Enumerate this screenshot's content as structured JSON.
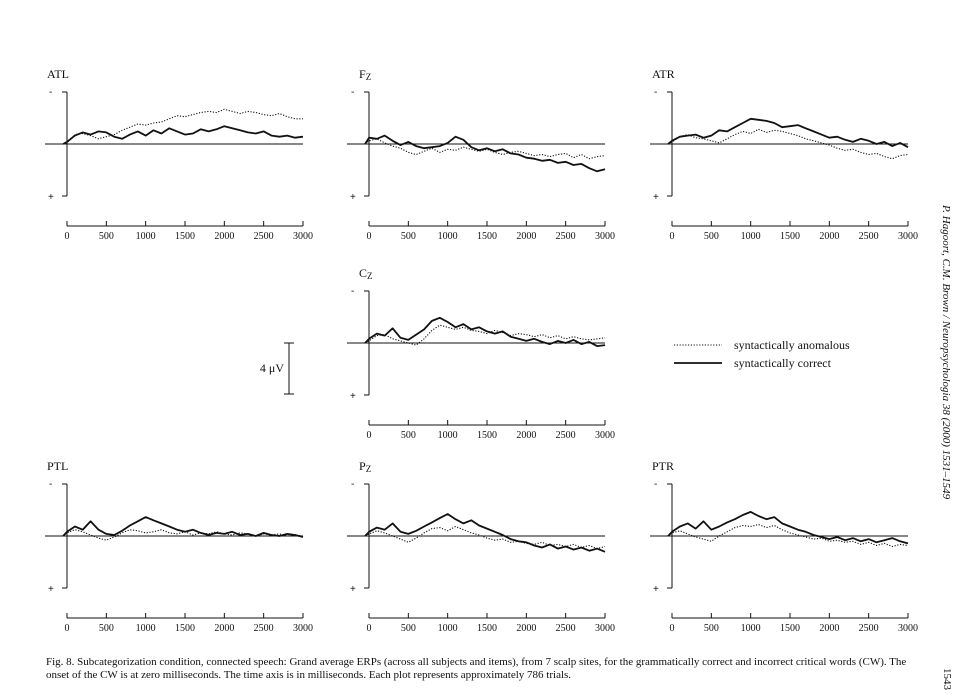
{
  "caption": "Fig. 8. Subcategorization condition, connected speech: Grand average ERPs (across all subjects and items), from 7 scalp sites, for the grammatically correct and incorrect critical words (CW). The onset of the CW is at zero milliseconds. The time axis is in milliseconds. Each plot represents approximately 786 trials.",
  "running_head": "P. Hagoort, C.M. Brown / Neuropsychologia 38 (2000) 1531–1549",
  "page_number": "1543",
  "scale_bar_label": "4 μV",
  "polarity": {
    "negative": "-",
    "positive": "+"
  },
  "legend": [
    {
      "name": "syntactically anomalous",
      "style": "dotted"
    },
    {
      "name": "syntactically correct",
      "style": "solid"
    }
  ],
  "chart_data": [
    {
      "type": "line",
      "title": "ATL",
      "xlim": [
        0,
        3000
      ],
      "ylim": [
        -4,
        4
      ],
      "x_ticks": [
        0,
        500,
        1000,
        1500,
        2000,
        2500,
        3000
      ],
      "x": [
        -50,
        0,
        100,
        200,
        300,
        400,
        500,
        600,
        700,
        800,
        900,
        1000,
        1100,
        1200,
        1300,
        1400,
        1500,
        1600,
        1700,
        1800,
        1900,
        2000,
        2100,
        2200,
        2300,
        2400,
        2500,
        2600,
        2700,
        2800,
        2900,
        3000
      ],
      "series": [
        {
          "name": "syntactically anomalous",
          "values": [
            0,
            0.1,
            0.9,
            1.0,
            0.8,
            0.5,
            0.7,
            0.9,
            1.3,
            1.6,
            1.9,
            1.8,
            2.0,
            2.1,
            2.4,
            2.7,
            2.6,
            2.8,
            3.0,
            3.1,
            3.0,
            3.3,
            3.1,
            2.9,
            3.1,
            3.0,
            2.8,
            2.7,
            2.9,
            2.6,
            2.4,
            2.4
          ]
        },
        {
          "name": "syntactically correct",
          "values": [
            0,
            0.2,
            0.8,
            1.1,
            0.9,
            1.2,
            1.1,
            0.7,
            0.5,
            0.9,
            1.2,
            0.8,
            1.3,
            1.0,
            1.5,
            1.2,
            0.9,
            1.0,
            1.4,
            1.2,
            1.4,
            1.7,
            1.5,
            1.3,
            1.1,
            1.0,
            1.2,
            0.8,
            0.7,
            0.8,
            0.6,
            0.7
          ]
        }
      ]
    },
    {
      "type": "line",
      "title": "Fz",
      "xlim": [
        0,
        3000
      ],
      "ylim": [
        -4,
        4
      ],
      "x_ticks": [
        0,
        500,
        1000,
        1500,
        2000,
        2500,
        3000
      ],
      "x": [
        -50,
        0,
        100,
        200,
        300,
        400,
        500,
        600,
        700,
        800,
        900,
        1000,
        1100,
        1200,
        1300,
        1400,
        1500,
        1600,
        1700,
        1800,
        1900,
        2000,
        2100,
        2200,
        2300,
        2400,
        2500,
        2600,
        2700,
        2800,
        2900,
        3000
      ],
      "series": [
        {
          "name": "syntactically anomalous",
          "values": [
            0,
            0.3,
            0.5,
            0.1,
            -0.2,
            -0.4,
            -0.8,
            -1.0,
            -0.7,
            -0.4,
            -0.8,
            -0.5,
            -0.6,
            -0.3,
            -0.5,
            -0.7,
            -0.5,
            -0.8,
            -1.0,
            -0.8,
            -0.7,
            -0.9,
            -1.1,
            -1.0,
            -1.2,
            -1.0,
            -0.9,
            -1.3,
            -1.0,
            -1.4,
            -1.2,
            -1.1
          ]
        },
        {
          "name": "syntactically correct",
          "values": [
            0,
            0.6,
            0.5,
            0.8,
            0.3,
            -0.1,
            0.2,
            -0.2,
            -0.4,
            -0.3,
            -0.2,
            0.1,
            0.7,
            0.4,
            -0.3,
            -0.6,
            -0.4,
            -0.7,
            -0.5,
            -0.9,
            -1.0,
            -1.3,
            -1.4,
            -1.6,
            -1.5,
            -1.8,
            -1.7,
            -2.0,
            -1.9,
            -2.3,
            -2.6,
            -2.4
          ]
        }
      ]
    },
    {
      "type": "line",
      "title": "ATR",
      "xlim": [
        0,
        3000
      ],
      "ylim": [
        -4,
        4
      ],
      "x_ticks": [
        0,
        500,
        1000,
        1500,
        2000,
        2500,
        3000
      ],
      "x": [
        -50,
        0,
        100,
        200,
        300,
        400,
        500,
        600,
        700,
        800,
        900,
        1000,
        1100,
        1200,
        1300,
        1400,
        1500,
        1600,
        1700,
        1800,
        1900,
        2000,
        2100,
        2200,
        2300,
        2400,
        2500,
        2600,
        2700,
        2800,
        2900,
        3000
      ],
      "series": [
        {
          "name": "syntactically anomalous",
          "values": [
            0,
            0.2,
            0.7,
            0.9,
            0.6,
            0.5,
            0.3,
            0.1,
            0.5,
            0.9,
            1.2,
            1.0,
            1.4,
            1.1,
            1.3,
            1.2,
            1.0,
            0.8,
            0.5,
            0.3,
            0.1,
            -0.1,
            -0.4,
            -0.6,
            -0.5,
            -0.8,
            -1.0,
            -0.9,
            -1.2,
            -1.4,
            -1.1,
            -1.0
          ]
        },
        {
          "name": "syntactically correct",
          "values": [
            0,
            0.3,
            0.7,
            0.8,
            0.9,
            0.6,
            0.8,
            1.3,
            1.2,
            1.6,
            2.0,
            2.4,
            2.3,
            2.2,
            2.0,
            1.6,
            1.7,
            1.8,
            1.5,
            1.2,
            0.9,
            0.6,
            0.7,
            0.4,
            0.2,
            0.5,
            0.3,
            0.0,
            0.2,
            -0.2,
            0.1,
            -0.3
          ]
        }
      ]
    },
    {
      "type": "line",
      "title": "Cz",
      "xlim": [
        0,
        3000
      ],
      "ylim": [
        -4,
        4
      ],
      "x_ticks": [
        0,
        500,
        1000,
        1500,
        2000,
        2500,
        3000
      ],
      "x": [
        -50,
        0,
        100,
        200,
        300,
        400,
        500,
        600,
        700,
        800,
        900,
        1000,
        1100,
        1200,
        1300,
        1400,
        1500,
        1600,
        1700,
        1800,
        1900,
        2000,
        2100,
        2200,
        2300,
        2400,
        2500,
        2600,
        2700,
        2800,
        2900,
        3000
      ],
      "series": [
        {
          "name": "syntactically anomalous",
          "values": [
            0,
            0.2,
            0.7,
            0.8,
            0.4,
            0.2,
            0.0,
            -0.2,
            0.4,
            1.2,
            1.7,
            1.5,
            1.3,
            1.5,
            1.2,
            1.1,
            0.9,
            1.2,
            1.0,
            0.7,
            0.9,
            0.8,
            0.6,
            0.8,
            0.5,
            0.7,
            0.4,
            0.6,
            0.4,
            0.3,
            0.4,
            0.5
          ]
        },
        {
          "name": "syntactically correct",
          "values": [
            0,
            0.4,
            0.9,
            0.7,
            1.4,
            0.5,
            0.3,
            0.8,
            1.3,
            2.1,
            2.4,
            2.0,
            1.5,
            1.8,
            1.3,
            1.5,
            1.1,
            0.9,
            1.1,
            0.6,
            0.4,
            0.2,
            0.4,
            0.1,
            -0.1,
            0.2,
            0.0,
            0.3,
            -0.1,
            0.1,
            -0.3,
            -0.2
          ]
        }
      ]
    },
    {
      "type": "line",
      "title": "PTL",
      "xlim": [
        0,
        3000
      ],
      "ylim": [
        -4,
        4
      ],
      "x_ticks": [
        0,
        500,
        1000,
        1500,
        2000,
        2500,
        3000
      ],
      "x": [
        -50,
        0,
        100,
        200,
        300,
        400,
        500,
        600,
        700,
        800,
        900,
        1000,
        1100,
        1200,
        1300,
        1400,
        1500,
        1600,
        1700,
        1800,
        1900,
        2000,
        2100,
        2200,
        2300,
        2400,
        2500,
        2600,
        2700,
        2800,
        2900,
        3000
      ],
      "series": [
        {
          "name": "syntactically anomalous",
          "values": [
            0,
            0.3,
            0.6,
            0.4,
            0.1,
            -0.2,
            -0.4,
            -0.1,
            0.3,
            0.6,
            0.5,
            0.3,
            0.4,
            0.6,
            0.3,
            0.2,
            0.4,
            0.1,
            0.3,
            0.2,
            0.4,
            0.2,
            0.1,
            0.3,
            0.2,
            0.0,
            0.2,
            0.1,
            0.2,
            0.0,
            0.1,
            0.0
          ]
        },
        {
          "name": "syntactically correct",
          "values": [
            0,
            0.4,
            0.9,
            0.6,
            1.4,
            0.6,
            0.2,
            0.1,
            0.5,
            1.0,
            1.4,
            1.8,
            1.5,
            1.2,
            0.9,
            0.6,
            0.4,
            0.6,
            0.3,
            0.1,
            0.3,
            0.2,
            0.4,
            0.1,
            0.2,
            0.0,
            0.3,
            0.1,
            0.0,
            0.2,
            0.1,
            -0.1
          ]
        }
      ]
    },
    {
      "type": "line",
      "title": "Pz",
      "xlim": [
        0,
        3000
      ],
      "ylim": [
        -4,
        4
      ],
      "x_ticks": [
        0,
        500,
        1000,
        1500,
        2000,
        2500,
        3000
      ],
      "x": [
        -50,
        0,
        100,
        200,
        300,
        400,
        500,
        600,
        700,
        800,
        900,
        1000,
        1100,
        1200,
        1300,
        1400,
        1500,
        1600,
        1700,
        1800,
        1900,
        2000,
        2100,
        2200,
        2300,
        2400,
        2500,
        2600,
        2700,
        2800,
        2900,
        3000
      ],
      "series": [
        {
          "name": "syntactically anomalous",
          "values": [
            0,
            0.2,
            0.5,
            0.3,
            0.0,
            -0.3,
            -0.6,
            -0.2,
            0.3,
            0.7,
            0.8,
            0.5,
            0.9,
            0.6,
            0.3,
            0.1,
            -0.2,
            -0.4,
            -0.3,
            -0.6,
            -0.5,
            -0.7,
            -0.8,
            -0.6,
            -0.9,
            -0.8,
            -1.0,
            -0.8,
            -1.1,
            -0.9,
            -1.2,
            -1.0
          ]
        },
        {
          "name": "syntactically correct",
          "values": [
            0,
            0.4,
            0.8,
            0.6,
            1.2,
            0.4,
            0.2,
            0.5,
            0.9,
            1.3,
            1.7,
            2.1,
            1.6,
            1.2,
            1.5,
            1.0,
            0.7,
            0.4,
            0.1,
            -0.3,
            -0.5,
            -0.6,
            -0.9,
            -1.1,
            -0.8,
            -1.2,
            -1.0,
            -1.3,
            -1.1,
            -1.4,
            -1.2,
            -1.5
          ]
        }
      ]
    },
    {
      "type": "line",
      "title": "PTR",
      "xlim": [
        0,
        3000
      ],
      "ylim": [
        -4,
        4
      ],
      "x_ticks": [
        0,
        500,
        1000,
        1500,
        2000,
        2500,
        3000
      ],
      "x": [
        -50,
        0,
        100,
        200,
        300,
        400,
        500,
        600,
        700,
        800,
        900,
        1000,
        1100,
        1200,
        1300,
        1400,
        1500,
        1600,
        1700,
        1800,
        1900,
        2000,
        2100,
        2200,
        2300,
        2400,
        2500,
        2600,
        2700,
        2800,
        2900,
        3000
      ],
      "series": [
        {
          "name": "syntactically anomalous",
          "values": [
            0,
            0.3,
            0.5,
            0.2,
            -0.1,
            -0.3,
            -0.5,
            0.0,
            0.4,
            0.8,
            1.0,
            0.9,
            1.1,
            0.8,
            1.0,
            0.6,
            0.3,
            0.1,
            -0.1,
            -0.3,
            -0.2,
            -0.5,
            -0.4,
            -0.6,
            -0.5,
            -0.8,
            -0.6,
            -0.9,
            -0.7,
            -1.0,
            -0.8,
            -0.9
          ]
        },
        {
          "name": "syntactically correct",
          "values": [
            0,
            0.4,
            0.9,
            1.2,
            0.7,
            1.4,
            0.6,
            0.9,
            1.3,
            1.6,
            2.0,
            2.3,
            1.9,
            1.6,
            1.8,
            1.2,
            0.9,
            0.6,
            0.4,
            0.1,
            -0.1,
            -0.3,
            -0.1,
            -0.4,
            -0.2,
            -0.5,
            -0.3,
            -0.6,
            -0.4,
            -0.2,
            -0.5,
            -0.7
          ]
        }
      ]
    }
  ]
}
